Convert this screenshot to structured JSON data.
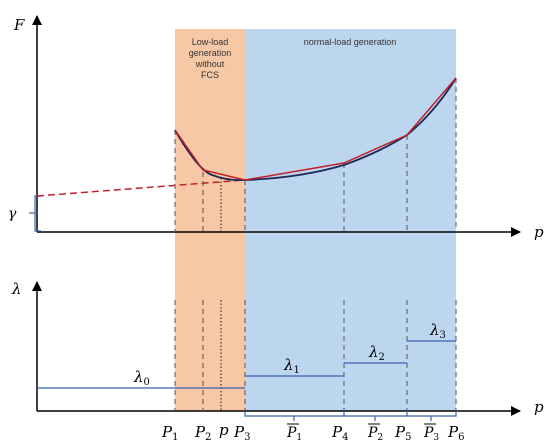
{
  "regions": {
    "low_load": {
      "label_lines": [
        "Low-load",
        "generation",
        "without",
        "FCS"
      ],
      "color": "#f7c8a6"
    },
    "normal_load": {
      "label": "normal-load generation",
      "color": "#bdd6ef"
    }
  },
  "top_plot": {
    "y_axis_label": "F",
    "x_axis_label": "p",
    "intercept_label": "γ",
    "curve_color": "#1f2a5a",
    "approx_color": "#c0202a",
    "axis_color": "#000000"
  },
  "bottom_plot": {
    "y_axis_label": "λ",
    "x_axis_label": "p",
    "step_color": "#3b5fb0",
    "steps": [
      {
        "label": "λ",
        "sub": "0"
      },
      {
        "label": "λ",
        "sub": "1"
      },
      {
        "label": "λ",
        "sub": "2"
      },
      {
        "label": "λ",
        "sub": "3"
      }
    ],
    "interval_labels": [
      {
        "label": "P",
        "sub": "1"
      },
      {
        "label": "P",
        "sub": "2"
      },
      {
        "label": "P",
        "sub": "3"
      }
    ],
    "tick_labels": [
      {
        "label": "P",
        "sub": "1"
      },
      {
        "label": "P",
        "sub": "2"
      },
      {
        "label": "p",
        "sub": ""
      },
      {
        "label": "P",
        "sub": "3"
      },
      {
        "label": "P",
        "sub": "4"
      },
      {
        "label": "P",
        "sub": "2"
      },
      {
        "label": "P",
        "sub": "5"
      },
      {
        "label": "P",
        "sub": "3"
      },
      {
        "label": "P",
        "sub": "6"
      }
    ]
  }
}
